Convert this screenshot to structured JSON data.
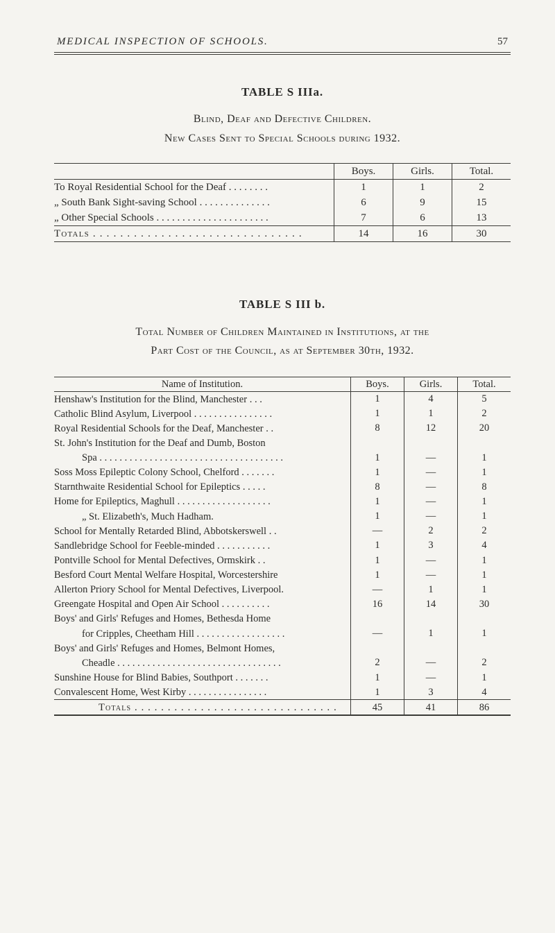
{
  "runningHead": {
    "title": "MEDICAL INSPECTION OF SCHOOLS.",
    "pageNumber": "57"
  },
  "tableA": {
    "title": "TABLE S IIIa.",
    "subtitle1": "Blind, Deaf and Defective Children.",
    "subtitle2": "New Cases Sent to Special Schools during 1932.",
    "columns": [
      "Boys.",
      "Girls.",
      "Total."
    ],
    "rows": [
      {
        "name": "To Royal Residential School for the Deaf . . . . . . . .",
        "boys": "1",
        "girls": "1",
        "total": "2"
      },
      {
        "name": "„  South Bank Sight-saving School . . . . . . . . . . . . . .",
        "boys": "6",
        "girls": "9",
        "total": "15"
      },
      {
        "name": "„  Other Special Schools  . . . . . . . . . . . . . . . . . . . . . .",
        "boys": "7",
        "girls": "6",
        "total": "13"
      }
    ],
    "totals": {
      "label": "Totals . . . . . . . . . . . . . . . . . . . . . . . . . . . . . . .",
      "boys": "14",
      "girls": "16",
      "total": "30"
    }
  },
  "tableB": {
    "title": "TABLE S III b.",
    "caption1": "Total Number of Children Maintained in Institutions, at the",
    "caption2": "Part Cost of the Council, as at September 30th, 1932.",
    "nameHeader": "Name of Institution.",
    "columns": [
      "Boys.",
      "Girls.",
      "Total."
    ],
    "rows": [
      {
        "name": "Henshaw's Institution for the Blind, Manchester . . .",
        "boys": "1",
        "girls": "4",
        "total": "5"
      },
      {
        "name": "Catholic Blind Asylum, Liverpool . . . . . . . . . . . . . . . .",
        "boys": "1",
        "girls": "1",
        "total": "2"
      },
      {
        "name": "Royal Residential Schools for the Deaf, Manchester . .",
        "boys": "8",
        "girls": "12",
        "total": "20"
      },
      {
        "name": "St. John's Institution for the Deaf and Dumb, Boston",
        "boys": "",
        "girls": "",
        "total": ""
      },
      {
        "name": "  Spa . . . . . . . . . . . . . . . . . . . . . . . . . . . . . . . . . . . . .",
        "boys": "1",
        "girls": "—",
        "total": "1",
        "indent": 1
      },
      {
        "name": "Soss Moss Epileptic Colony School, Chelford . . . . . . .",
        "boys": "1",
        "girls": "—",
        "total": "1"
      },
      {
        "name": "Starnthwaite Residential School for Epileptics  . . . . .",
        "boys": "8",
        "girls": "—",
        "total": "8"
      },
      {
        "name": "Home for Epileptics, Maghull . . . . . . . . . . . . . . . . . . .",
        "boys": "1",
        "girls": "—",
        "total": "1"
      },
      {
        "name": "   „                    St. Elizabeth's, Much Hadham.",
        "boys": "1",
        "girls": "—",
        "total": "1",
        "indent": 1
      },
      {
        "name": "School for Mentally Retarded Blind, Abbotskerswell . .",
        "boys": "—",
        "girls": "2",
        "total": "2"
      },
      {
        "name": "Sandlebridge School for Feeble-minded  . . . . . . . . . . .",
        "boys": "1",
        "girls": "3",
        "total": "4"
      },
      {
        "name": "Pontville School for Mental Defectives, Ormskirk  . .",
        "boys": "1",
        "girls": "—",
        "total": "1"
      },
      {
        "name": "Besford Court Mental Welfare Hospital, Worcestershire",
        "boys": "1",
        "girls": "—",
        "total": "1"
      },
      {
        "name": "Allerton Priory School for Mental Defectives, Liverpool.",
        "boys": "—",
        "girls": "1",
        "total": "1"
      },
      {
        "name": "Greengate Hospital and Open Air School . . . . . . . . . .",
        "boys": "16",
        "girls": "14",
        "total": "30"
      },
      {
        "name": "Boys' and Girls' Refuges and Homes, Bethesda Home",
        "boys": "",
        "girls": "",
        "total": ""
      },
      {
        "name": "  for Cripples, Cheetham Hill . . . . . . . . . . . . . . . . . .",
        "boys": "—",
        "girls": "1",
        "total": "1",
        "indent": 1
      },
      {
        "name": "Boys' and Girls' Refuges and Homes, Belmont Homes,",
        "boys": "",
        "girls": "",
        "total": ""
      },
      {
        "name": "  Cheadle . . . . . . . . . . . . . . . . . . . . . . . . . . . . . . . . .",
        "boys": "2",
        "girls": "—",
        "total": "2",
        "indent": 1
      },
      {
        "name": "Sunshine House for Blind Babies, Southport . . . . . . .",
        "boys": "1",
        "girls": "—",
        "total": "1"
      },
      {
        "name": "Convalescent Home, West Kirby  . . . . . . . . . . . . . . . .",
        "boys": "1",
        "girls": "3",
        "total": "4"
      }
    ],
    "totals": {
      "label": "Totals . . . . . . . . . . . . . . . . . . . . . . . . . . . . . . .",
      "boys": "45",
      "girls": "41",
      "total": "86"
    }
  },
  "style": {
    "background": "#f5f4f0",
    "text": "#2a2a28",
    "rule": "#3a3a36"
  }
}
